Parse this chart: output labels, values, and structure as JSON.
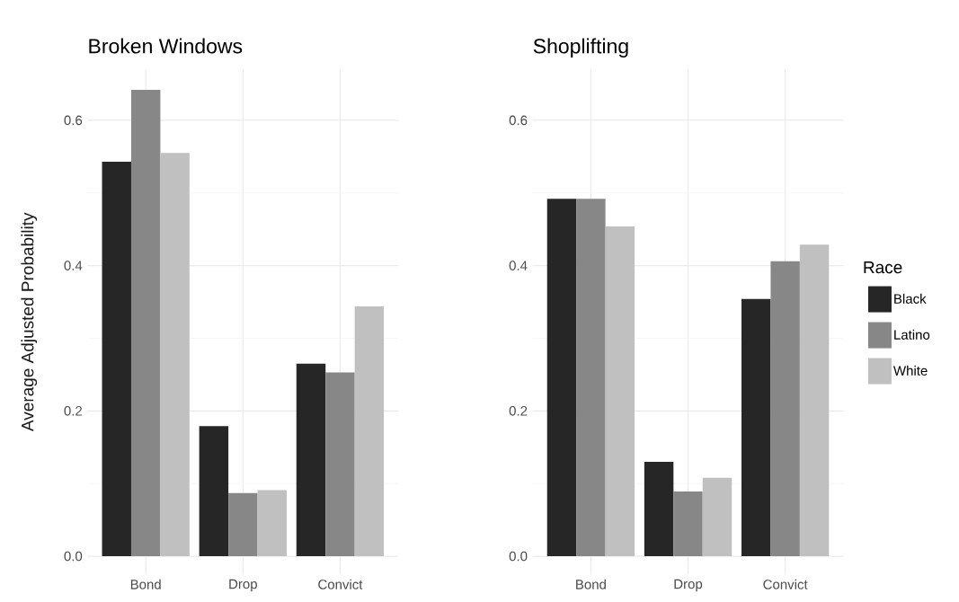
{
  "chart_data": [
    {
      "type": "bar",
      "title": "Broken Windows",
      "ylabel": "Average Adjusted Probability",
      "categories": [
        "Bond",
        "Drop",
        "Convict"
      ],
      "series": [
        {
          "color": "#262626",
          "values": [
            0.543,
            0.179,
            0.265
          ]
        },
        {
          "color": "#878787",
          "values": [
            0.642,
            0.087,
            0.253
          ]
        },
        {
          "color": "#c0c0c0",
          "values": [
            0.555,
            0.091,
            0.344
          ]
        }
      ],
      "ylim": [
        -0.025,
        0.67
      ],
      "yticks": [
        {
          "value": 0,
          "label": "0.0"
        },
        {
          "value": 0.1,
          "label": null
        },
        0.2,
        {
          "value": 0.3,
          "label": null
        },
        0.4,
        {
          "value": 0.5,
          "label": null
        },
        0.6
      ],
      "grid": true
    },
    {
      "type": "bar",
      "title": "Shoplifting",
      "categories": [
        "Bond",
        "Drop",
        "Convict"
      ],
      "legend_title": "Race",
      "legend": "right",
      "series": [
        {
          "name": "Black",
          "color": "#262626",
          "values": [
            0.492,
            0.13,
            0.354
          ]
        },
        {
          "name": "Latino",
          "color": "#878787",
          "values": [
            0.492,
            0.089,
            0.406
          ]
        },
        {
          "name": "White",
          "color": "#c0c0c0",
          "values": [
            0.454,
            0.108,
            0.429
          ]
        }
      ],
      "ylim": [
        -0.025,
        0.67
      ],
      "yticks": [
        {
          "value": 0,
          "label": "0.0"
        },
        {
          "value": 0.1,
          "label": null
        },
        0.2,
        {
          "value": 0.3,
          "label": null
        },
        0.4,
        {
          "value": 0.5,
          "label": null
        },
        0.6
      ],
      "grid": true
    }
  ]
}
